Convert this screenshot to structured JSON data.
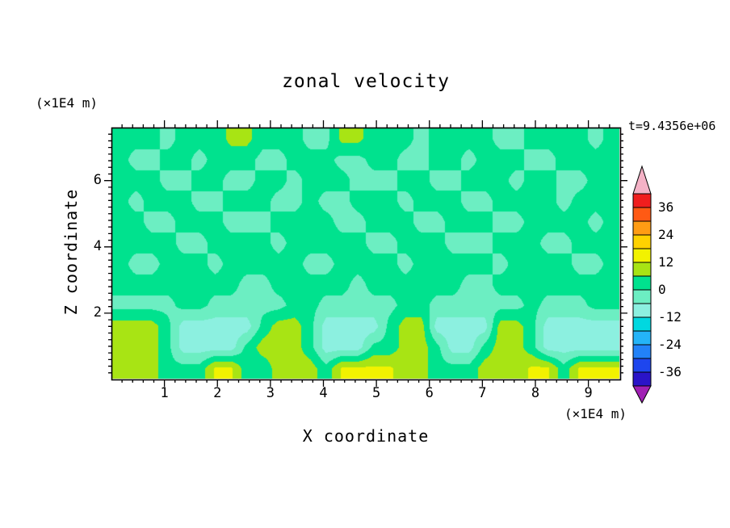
{
  "chart_data": {
    "type": "heatmap",
    "title": "zonal velocity",
    "time_label": "t=9.4356e+06",
    "xlabel": "X coordinate",
    "ylabel": "Z coordinate",
    "x_axis_unit": "(×1E4 m)",
    "z_axis_unit": "(×1E4 m)",
    "x_range": [
      0,
      9.6
    ],
    "z_range": [
      0,
      7.6
    ],
    "x_major_ticks": [
      1,
      2,
      3,
      4,
      5,
      6,
      7,
      8,
      9
    ],
    "z_major_ticks": [
      2,
      4,
      6
    ],
    "minor_tick_step": 0.2,
    "colorbar": {
      "labels": [
        36,
        24,
        12,
        0,
        -12,
        -24,
        -36
      ],
      "levels": [
        -42,
        -36,
        -30,
        -24,
        -18,
        -12,
        -6,
        0,
        6,
        12,
        18,
        24,
        30,
        36,
        42
      ],
      "bin_colors_low_to_high": [
        "#2a14c8",
        "#1e46ee",
        "#2282f8",
        "#24b4f8",
        "#00d8e0",
        "#8cf0e0",
        "#6ceec2",
        "#00e28e",
        "#a8e414",
        "#f2f200",
        "#ffd200",
        "#ff9c14",
        "#ff5a14",
        "#f01e1e"
      ],
      "below_color": "#a020b4",
      "above_color": "#f4b2c6"
    },
    "grid": {
      "nx": 32,
      "nz": 12,
      "orientation": "rows top of plot (high z) to bottom (z=0), values in same units as colorbar",
      "values": [
        [
          2,
          2,
          2,
          -2,
          2,
          2,
          2,
          8,
          8,
          2,
          2,
          2,
          -2,
          -2,
          8,
          8,
          2,
          2,
          2,
          -2,
          2,
          2,
          2,
          2,
          -2,
          -2,
          2,
          2,
          2,
          2,
          -2,
          2
        ],
        [
          2,
          -2,
          -2,
          2,
          2,
          -2,
          2,
          2,
          2,
          -2,
          -2,
          2,
          2,
          2,
          -2,
          -2,
          2,
          2,
          -2,
          -2,
          2,
          2,
          -2,
          2,
          2,
          2,
          -2,
          -2,
          2,
          2,
          2,
          2
        ],
        [
          2,
          2,
          2,
          -2,
          -2,
          2,
          2,
          -2,
          -2,
          2,
          2,
          -2,
          2,
          2,
          2,
          -2,
          -2,
          -2,
          2,
          2,
          -2,
          -2,
          2,
          2,
          2,
          -2,
          2,
          2,
          -2,
          -2,
          2,
          2
        ],
        [
          2,
          -2,
          2,
          2,
          2,
          -2,
          -2,
          2,
          2,
          2,
          -2,
          -2,
          2,
          -2,
          -2,
          2,
          2,
          2,
          -2,
          2,
          2,
          2,
          -2,
          -2,
          2,
          2,
          2,
          2,
          -2,
          2,
          2,
          2
        ],
        [
          2,
          2,
          -2,
          -2,
          2,
          2,
          2,
          -2,
          -2,
          -2,
          2,
          2,
          2,
          2,
          -2,
          -2,
          2,
          2,
          2,
          -2,
          -2,
          2,
          2,
          2,
          -2,
          -2,
          2,
          2,
          2,
          2,
          -2,
          2
        ],
        [
          2,
          2,
          2,
          2,
          -2,
          -2,
          2,
          2,
          2,
          2,
          -2,
          2,
          2,
          2,
          2,
          2,
          -2,
          -2,
          2,
          2,
          2,
          -2,
          -2,
          -2,
          2,
          2,
          2,
          -2,
          -2,
          2,
          2,
          2
        ],
        [
          2,
          -2,
          -2,
          2,
          2,
          2,
          -2,
          2,
          2,
          2,
          2,
          2,
          -2,
          -2,
          2,
          2,
          2,
          2,
          -2,
          2,
          2,
          2,
          2,
          2,
          -2,
          2,
          2,
          2,
          2,
          -2,
          -2,
          2
        ],
        [
          2,
          2,
          2,
          2,
          2,
          2,
          2,
          2,
          -2,
          -2,
          2,
          2,
          2,
          2,
          2,
          -2,
          2,
          2,
          2,
          2,
          2,
          2,
          -2,
          -2,
          2,
          2,
          2,
          2,
          2,
          2,
          2,
          2
        ],
        [
          -2,
          -2,
          -2,
          -2,
          2,
          2,
          -2,
          -2,
          -2,
          -2,
          -2,
          2,
          2,
          -2,
          -2,
          -2,
          -2,
          -2,
          2,
          2,
          -2,
          -2,
          -2,
          -2,
          -2,
          -2,
          2,
          -2,
          -2,
          -2,
          2,
          2
        ],
        [
          9,
          9,
          9,
          2,
          -9,
          -9,
          -9,
          -9,
          -9,
          2,
          9,
          9,
          2,
          -9,
          -9,
          -9,
          -9,
          2,
          9,
          9,
          -9,
          -9,
          -9,
          -9,
          9,
          9,
          2,
          -9,
          -9,
          -9,
          -9,
          -9
        ],
        [
          9,
          9,
          9,
          2,
          -9,
          -9,
          -9,
          -9,
          2,
          9,
          9,
          9,
          2,
          -9,
          -9,
          -9,
          2,
          2,
          9,
          9,
          2,
          -9,
          -9,
          2,
          9,
          9,
          2,
          -9,
          -9,
          -9,
          -9,
          -9
        ],
        [
          9,
          9,
          9,
          2,
          2,
          2,
          13,
          13,
          2,
          2,
          9,
          9,
          9,
          2,
          13,
          13,
          13,
          13,
          9,
          9,
          2,
          2,
          2,
          9,
          9,
          9,
          13,
          13,
          2,
          13,
          13,
          13
        ]
      ]
    }
  }
}
